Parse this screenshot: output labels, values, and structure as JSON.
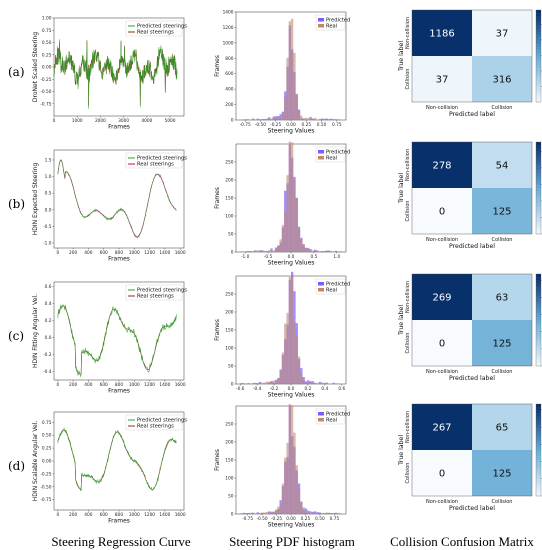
{
  "row_labels": [
    "(a)",
    "(b)",
    "(c)",
    "(d)"
  ],
  "captions": [
    "Steering Regression Curve",
    "Steering PDF histogram",
    "Collision Confusion Matrix"
  ],
  "colors": {
    "curve_predicted": "#2ca02c",
    "curve_real": "#8c2d19",
    "hist_predicted": "#7b5cff",
    "hist_real": "#c08a6a",
    "hist_overlap": "#e0488a",
    "cm_dark": "#08306b",
    "cm_light": "#f7fbff"
  },
  "chart_data": [
    {
      "type": "line",
      "row": "(a)",
      "xlabel": "Frames",
      "ylabel": "DroNet Scaled Steering",
      "xlim": [
        0,
        5600
      ],
      "ylim": [
        -1.0,
        1.0
      ],
      "xticks": [
        "0",
        "1000",
        "2000",
        "3000",
        "4000",
        "5000"
      ],
      "yticks": [
        "-0.75",
        "-0.50",
        "-0.25",
        "0.00",
        "0.25",
        "0.50",
        "0.75",
        "1.00"
      ],
      "legend": [
        "Predicted steerings",
        "Real steerings"
      ],
      "legend_placement": "top-right"
    },
    {
      "type": "bar",
      "row": "(a)",
      "xlabel": "Steering Values",
      "ylabel": "Frames",
      "xlim": [
        -0.9,
        0.9
      ],
      "ylim": [
        0,
        1400
      ],
      "xticks": [
        "-0.75",
        "-0.50",
        "-0.25",
        "0.00",
        "0.25",
        "0.50",
        "0.75",
        "1.00"
      ],
      "yticks": [
        "0",
        "200",
        "400",
        "600",
        "800",
        "1000",
        "1200",
        "1400"
      ],
      "legend": [
        "Predicted",
        "Real"
      ],
      "legend_placement": "top-right"
    },
    {
      "type": "heatmap",
      "row": "(a)",
      "xlabel": "Predicted label",
      "ylabel": "True label",
      "labels": [
        "Non-collision",
        "Collision"
      ],
      "values": [
        [
          1186,
          37
        ],
        [
          37,
          316
        ]
      ],
      "colorbar_ticks": [
        "200",
        "400",
        "600",
        "800",
        "1000"
      ],
      "vmax": 1186
    },
    {
      "type": "line",
      "row": "(b)",
      "xlabel": "Frames",
      "ylabel": "HDIN Expected Steering",
      "xlim": [
        -50,
        1650
      ],
      "ylim": [
        -1.15,
        1.8
      ],
      "xticks": [
        "0",
        "200",
        "400",
        "600",
        "800",
        "1000",
        "1200",
        "1400",
        "1600"
      ],
      "yticks": [
        "-1.0",
        "-0.5",
        "0.0",
        "0.5",
        "1.0",
        "1.5"
      ],
      "legend": [
        "Predicted steerings",
        "Real steerings"
      ],
      "legend_placement": "top-right"
    },
    {
      "type": "bar",
      "row": "(b)",
      "xlabel": "Steering Values",
      "ylabel": "Frames",
      "xlim": [
        -1.2,
        1.2
      ],
      "ylim": [
        0,
        300
      ],
      "xticks": [
        "-1.0",
        "-0.5",
        "0.0",
        "0.5",
        "1.0"
      ],
      "yticks": [
        "0",
        "50",
        "100",
        "150",
        "200",
        "250"
      ],
      "legend": [
        "Predicted",
        "Real"
      ],
      "legend_placement": "top-right"
    },
    {
      "type": "heatmap",
      "row": "(b)",
      "xlabel": "Predicted label",
      "ylabel": "True label",
      "labels": [
        "Non-collision",
        "Collision"
      ],
      "values": [
        [
          278,
          54
        ],
        [
          0,
          125
        ]
      ],
      "colorbar_ticks": [
        "0",
        "50",
        "100",
        "150",
        "200",
        "250"
      ],
      "vmax": 278
    },
    {
      "type": "line",
      "row": "(c)",
      "xlabel": "Frames",
      "ylabel": "HDIN Fitting Angular Vel.",
      "xlim": [
        -50,
        1650
      ],
      "ylim": [
        -0.5,
        0.65
      ],
      "xticks": [
        "0",
        "200",
        "400",
        "600",
        "800",
        "1000",
        "1200",
        "1400",
        "1600"
      ],
      "yticks": [
        "-0.4",
        "-0.2",
        "0.0",
        "0.2",
        "0.4",
        "0.6"
      ],
      "legend": [
        "Predicted steerings",
        "Real steerings"
      ],
      "legend_placement": "top-right"
    },
    {
      "type": "bar",
      "row": "(c)",
      "xlabel": "Steering Values",
      "ylabel": "Frames",
      "xlim": [
        -0.65,
        0.65
      ],
      "ylim": [
        0,
        300
      ],
      "xticks": [
        "-0.6",
        "-0.4",
        "-0.2",
        "0.0",
        "0.2",
        "0.4",
        "0.6"
      ],
      "yticks": [
        "0",
        "50",
        "100",
        "150",
        "200",
        "250"
      ],
      "legend": [
        "Predicted",
        "Real"
      ],
      "legend_placement": "top-right"
    },
    {
      "type": "heatmap",
      "row": "(c)",
      "xlabel": "Predicted label",
      "ylabel": "True label",
      "labels": [
        "Non-collision",
        "Collision"
      ],
      "values": [
        [
          269,
          63
        ],
        [
          0,
          125
        ]
      ],
      "colorbar_ticks": [
        "0",
        "50",
        "100",
        "150",
        "200",
        "250"
      ],
      "vmax": 269
    },
    {
      "type": "line",
      "row": "(d)",
      "xlabel": "Frames",
      "ylabel": "HDIN Scalable Angular Vel.",
      "xlim": [
        -50,
        1650
      ],
      "ylim": [
        -0.95,
        0.95
      ],
      "xticks": [
        "0",
        "200",
        "400",
        "600",
        "800",
        "1000",
        "1200",
        "1400",
        "1600"
      ],
      "yticks": [
        "-0.75",
        "-0.50",
        "-0.25",
        "0.00",
        "0.25",
        "0.50",
        "0.75"
      ],
      "legend": [
        "Predicted steerings",
        "Real steerings"
      ],
      "legend_placement": "top-right"
    },
    {
      "type": "bar",
      "row": "(d)",
      "xlabel": "Steering Values",
      "ylabel": "Frames",
      "xlim": [
        -0.95,
        0.95
      ],
      "ylim": [
        0,
        300
      ],
      "xticks": [
        "-0.75",
        "-0.50",
        "-0.25",
        "0.00",
        "0.25",
        "0.50",
        "0.75"
      ],
      "yticks": [
        "0",
        "50",
        "100",
        "150",
        "200",
        "250"
      ],
      "legend": [
        "Predicted",
        "Real"
      ],
      "legend_placement": "top-right"
    },
    {
      "type": "heatmap",
      "row": "(d)",
      "xlabel": "Predicted label",
      "ylabel": "True label",
      "labels": [
        "Non-collision",
        "Collision"
      ],
      "values": [
        [
          267,
          65
        ],
        [
          0,
          125
        ]
      ],
      "colorbar_ticks": [
        "0",
        "50",
        "100",
        "150",
        "200",
        "250"
      ],
      "vmax": 267
    }
  ]
}
